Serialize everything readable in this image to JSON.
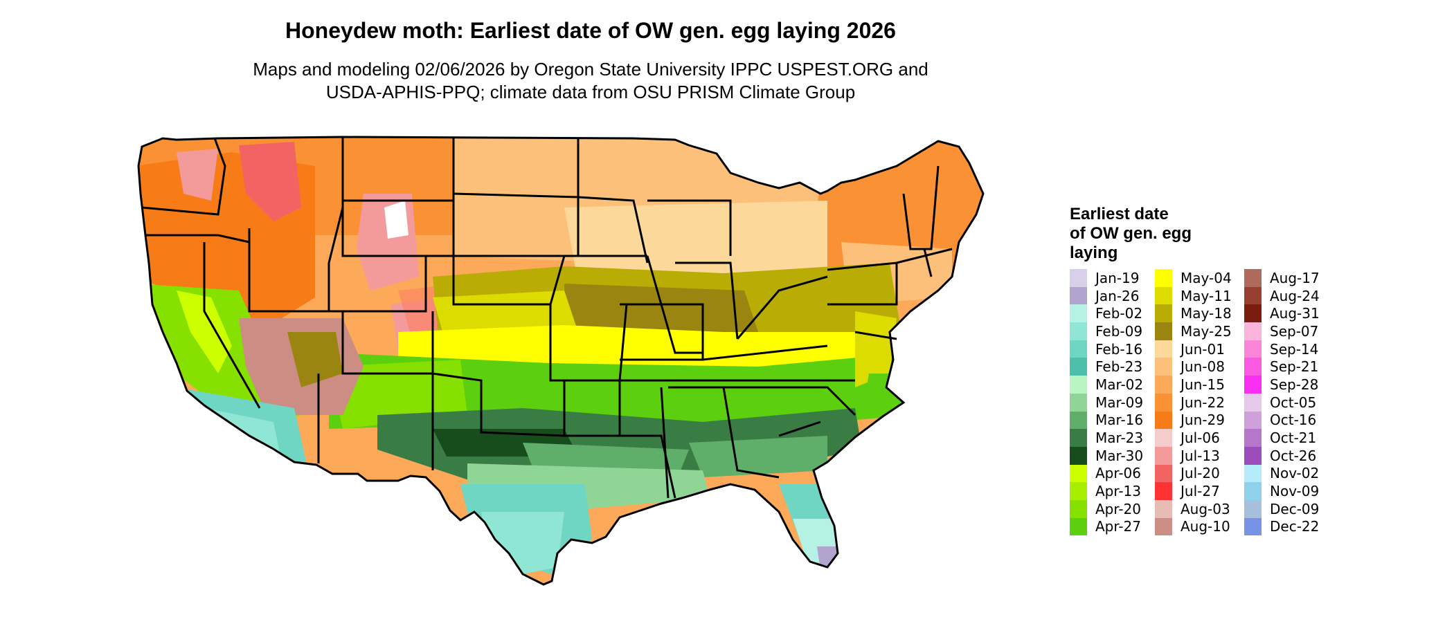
{
  "title": "Honeydew moth: Earliest date of OW gen. egg laying 2026",
  "subtitle_line1": "Maps and modeling 02/06/2026 by Oregon State University IPPC USPEST.ORG and",
  "subtitle_line2": "USDA-APHIS-PPQ; climate data from OSU PRISM Climate Group",
  "legend": {
    "title_line1": "Earliest date",
    "title_line2": "of OW gen. egg",
    "title_line3": "laying",
    "columns": [
      [
        {
          "label": "Jan-19",
          "color": "#d8d0ea"
        },
        {
          "label": "Jan-26",
          "color": "#b3a4cf"
        },
        {
          "label": "Feb-02",
          "color": "#b4f2e6"
        },
        {
          "label": "Feb-09",
          "color": "#8fe6d4"
        },
        {
          "label": "Feb-16",
          "color": "#6fd6c4"
        },
        {
          "label": "Feb-23",
          "color": "#4dbfaa"
        },
        {
          "label": "Mar-02",
          "color": "#b8f5c2"
        },
        {
          "label": "Mar-09",
          "color": "#8fd696"
        },
        {
          "label": "Mar-16",
          "color": "#5fae6a"
        },
        {
          "label": "Mar-23",
          "color": "#3a7d44"
        },
        {
          "label": "Mar-30",
          "color": "#174d1c"
        },
        {
          "label": "Apr-06",
          "color": "#ccff00"
        },
        {
          "label": "Apr-13",
          "color": "#a6ef00"
        },
        {
          "label": "Apr-20",
          "color": "#86e000"
        },
        {
          "label": "Apr-27",
          "color": "#5ccf0f"
        }
      ],
      [
        {
          "label": "May-04",
          "color": "#ffff00"
        },
        {
          "label": "May-11",
          "color": "#dcdc00"
        },
        {
          "label": "May-18",
          "color": "#b9ad05"
        },
        {
          "label": "May-25",
          "color": "#9a8510"
        },
        {
          "label": "Jun-01",
          "color": "#fcd89a"
        },
        {
          "label": "Jun-08",
          "color": "#fcc07a"
        },
        {
          "label": "Jun-15",
          "color": "#fca95a"
        },
        {
          "label": "Jun-22",
          "color": "#fb9135"
        },
        {
          "label": "Jun-29",
          "color": "#f77b17"
        },
        {
          "label": "Jul-06",
          "color": "#f4cccc"
        },
        {
          "label": "Jul-13",
          "color": "#f39a9a"
        },
        {
          "label": "Jul-20",
          "color": "#f26464"
        },
        {
          "label": "Jul-27",
          "color": "#ff3333"
        },
        {
          "label": "Aug-03",
          "color": "#e6bcb4"
        },
        {
          "label": "Aug-10",
          "color": "#cc8e84"
        }
      ],
      [
        {
          "label": "Aug-17",
          "color": "#b06a5c"
        },
        {
          "label": "Aug-24",
          "color": "#973f31"
        },
        {
          "label": "Aug-31",
          "color": "#7a1c0e"
        },
        {
          "label": "Sep-07",
          "color": "#fbb4dc"
        },
        {
          "label": "Sep-14",
          "color": "#fb86d9"
        },
        {
          "label": "Sep-21",
          "color": "#fa5ae1"
        },
        {
          "label": "Sep-28",
          "color": "#f92ef0"
        },
        {
          "label": "Oct-05",
          "color": "#e6c8ea"
        },
        {
          "label": "Oct-16",
          "color": "#cfa0da"
        },
        {
          "label": "Oct-21",
          "color": "#b677cb"
        },
        {
          "label": "Oct-26",
          "color": "#9c4dbb"
        },
        {
          "label": "Nov-02",
          "color": "#b4ecfc"
        },
        {
          "label": "Nov-09",
          "color": "#8dd2ea"
        },
        {
          "label": "Dec-09",
          "color": "#a6c0dc"
        },
        {
          "label": "Dec-22",
          "color": "#7892e6"
        }
      ]
    ]
  }
}
